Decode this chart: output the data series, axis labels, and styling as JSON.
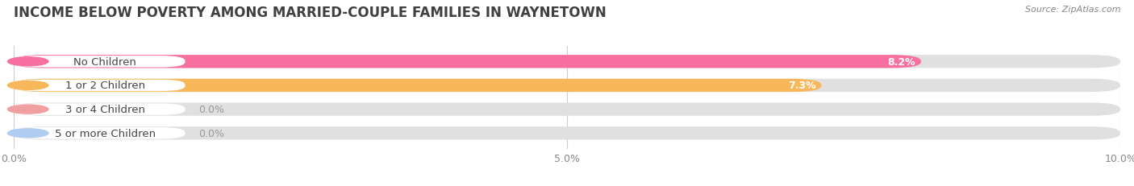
{
  "title": "INCOME BELOW POVERTY AMONG MARRIED-COUPLE FAMILIES IN WAYNETOWN",
  "source": "Source: ZipAtlas.com",
  "categories": [
    "No Children",
    "1 or 2 Children",
    "3 or 4 Children",
    "5 or more Children"
  ],
  "values": [
    8.2,
    7.3,
    0.0,
    0.0
  ],
  "bar_colors": [
    "#f86fa0",
    "#f9b75c",
    "#f0a0a0",
    "#b0ccf0"
  ],
  "xlim": [
    0,
    10.0
  ],
  "xticks": [
    0.0,
    5.0,
    10.0
  ],
  "xtick_labels": [
    "0.0%",
    "5.0%",
    "10.0%"
  ],
  "bar_height": 0.55,
  "background_color": "#ffffff",
  "bar_bg_color": "#e8e8e8",
  "title_fontsize": 12,
  "label_fontsize": 9.5,
  "value_fontsize": 9
}
